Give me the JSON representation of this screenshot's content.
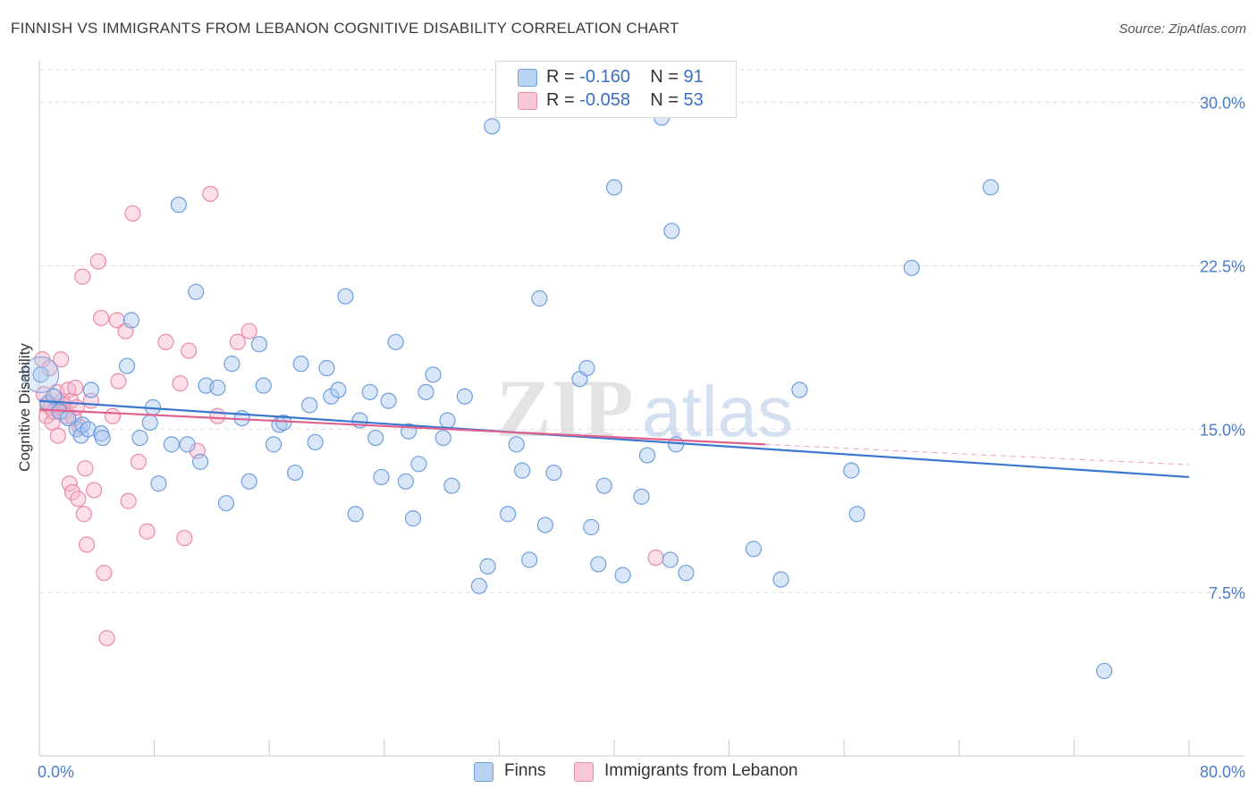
{
  "title": "FINNISH VS IMMIGRANTS FROM LEBANON COGNITIVE DISABILITY CORRELATION CHART",
  "source": "Source: ZipAtlas.com",
  "watermark": {
    "zip": "ZIP",
    "atlas": "atlas"
  },
  "legend": {
    "r_label": "R =",
    "n_label": "N =",
    "finns": {
      "r": "-0.160",
      "n": "91"
    },
    "lebanon": {
      "r": "-0.058",
      "n": "53"
    }
  },
  "bottom_legend": {
    "finns": "Finns",
    "lebanon": "Immigrants from Lebanon"
  },
  "colors": {
    "finns_fill": "#a9c8f0",
    "finns_stroke": "#6f9fdc",
    "finns_line": "#3a78d0",
    "lebanon_fill": "#f7b6cb",
    "lebanon_stroke": "#e98aaa",
    "lebanon_line": "#e0608f",
    "tick_text": "#4a7cc9",
    "grid": "#dcdcdc"
  },
  "chart_data": {
    "type": "scatter",
    "title": "FINNISH VS IMMIGRANTS FROM LEBANON COGNITIVE DISABILITY CORRELATION CHART",
    "xlabel": "",
    "ylabel": "Cognitive Disability",
    "xlim": [
      0,
      80
    ],
    "ylim": [
      0,
      31.5
    ],
    "x_tick_labels": [
      "0.0%",
      "80.0%"
    ],
    "y_ticks": [
      7.5,
      15.0,
      22.5,
      30.0
    ],
    "y_tick_labels": [
      "7.5%",
      "15.0%",
      "22.5%",
      "30.0%"
    ],
    "series": [
      {
        "name": "Finns",
        "r": -0.16,
        "n": 91,
        "trend": {
          "x": [
            0,
            80
          ],
          "y": [
            16.3,
            12.8
          ]
        },
        "points": [
          [
            0.1,
            17.5
          ],
          [
            0.6,
            16.2
          ],
          [
            1.0,
            16.5
          ],
          [
            1.4,
            15.8
          ],
          [
            2.0,
            15.5
          ],
          [
            2.6,
            15.0
          ],
          [
            2.9,
            14.7
          ],
          [
            3.0,
            15.2
          ],
          [
            3.4,
            15.0
          ],
          [
            3.6,
            16.8
          ],
          [
            4.3,
            14.8
          ],
          [
            4.4,
            14.6
          ],
          [
            6.1,
            17.9
          ],
          [
            6.4,
            20.0
          ],
          [
            7.0,
            14.6
          ],
          [
            7.7,
            15.3
          ],
          [
            7.9,
            16.0
          ],
          [
            8.3,
            12.5
          ],
          [
            9.2,
            14.3
          ],
          [
            9.7,
            25.3
          ],
          [
            10.3,
            14.3
          ],
          [
            10.9,
            21.3
          ],
          [
            11.2,
            13.5
          ],
          [
            11.6,
            17.0
          ],
          [
            12.4,
            16.9
          ],
          [
            13.0,
            11.6
          ],
          [
            13.4,
            18.0
          ],
          [
            14.1,
            15.5
          ],
          [
            14.6,
            12.6
          ],
          [
            15.3,
            18.9
          ],
          [
            15.6,
            17.0
          ],
          [
            16.3,
            14.3
          ],
          [
            16.7,
            15.2
          ],
          [
            17.0,
            15.3
          ],
          [
            17.8,
            13.0
          ],
          [
            18.2,
            18.0
          ],
          [
            18.8,
            16.1
          ],
          [
            19.2,
            14.4
          ],
          [
            20.0,
            17.8
          ],
          [
            20.3,
            16.5
          ],
          [
            20.8,
            16.8
          ],
          [
            21.3,
            21.1
          ],
          [
            22.0,
            11.1
          ],
          [
            22.3,
            15.4
          ],
          [
            23.0,
            16.7
          ],
          [
            23.4,
            14.6
          ],
          [
            23.8,
            12.8
          ],
          [
            24.3,
            16.3
          ],
          [
            24.8,
            19.0
          ],
          [
            25.5,
            12.6
          ],
          [
            25.7,
            14.9
          ],
          [
            26.0,
            10.9
          ],
          [
            26.4,
            13.4
          ],
          [
            26.9,
            16.7
          ],
          [
            27.4,
            17.5
          ],
          [
            28.1,
            14.6
          ],
          [
            28.4,
            15.4
          ],
          [
            28.7,
            12.4
          ],
          [
            29.6,
            16.5
          ],
          [
            30.6,
            7.8
          ],
          [
            31.2,
            8.7
          ],
          [
            31.5,
            28.9
          ],
          [
            32.6,
            11.1
          ],
          [
            33.2,
            14.3
          ],
          [
            33.6,
            13.1
          ],
          [
            34.1,
            9.0
          ],
          [
            35.2,
            10.6
          ],
          [
            35.8,
            13.0
          ],
          [
            37.6,
            17.3
          ],
          [
            38.1,
            17.8
          ],
          [
            38.4,
            10.5
          ],
          [
            38.9,
            8.8
          ],
          [
            39.3,
            12.4
          ],
          [
            40.0,
            26.1
          ],
          [
            40.6,
            8.3
          ],
          [
            41.9,
            11.9
          ],
          [
            42.3,
            13.8
          ],
          [
            43.3,
            29.3
          ],
          [
            43.9,
            9.0
          ],
          [
            44.0,
            24.1
          ],
          [
            44.3,
            14.3
          ],
          [
            45.0,
            8.4
          ],
          [
            49.7,
            9.5
          ],
          [
            51.6,
            8.1
          ],
          [
            52.9,
            16.8
          ],
          [
            56.5,
            13.1
          ],
          [
            56.9,
            11.1
          ],
          [
            60.7,
            22.4
          ],
          [
            66.2,
            26.1
          ],
          [
            74.1,
            3.9
          ],
          [
            34.8,
            21.0
          ]
        ]
      },
      {
        "name": "Immigrants from Lebanon",
        "r": -0.058,
        "n": 53,
        "trend": {
          "x": [
            0,
            50.5
          ],
          "y": [
            15.9,
            14.3
          ]
        },
        "points": [
          [
            0.2,
            18.2
          ],
          [
            0.3,
            16.6
          ],
          [
            0.5,
            15.6
          ],
          [
            0.6,
            16.1
          ],
          [
            0.7,
            17.8
          ],
          [
            0.8,
            16.0
          ],
          [
            0.9,
            15.3
          ],
          [
            1.0,
            15.8
          ],
          [
            1.2,
            16.7
          ],
          [
            1.3,
            14.7
          ],
          [
            1.4,
            16.0
          ],
          [
            1.5,
            18.2
          ],
          [
            1.6,
            16.3
          ],
          [
            1.7,
            16.1
          ],
          [
            1.8,
            15.8
          ],
          [
            1.9,
            15.6
          ],
          [
            2.0,
            16.8
          ],
          [
            2.1,
            12.5
          ],
          [
            2.2,
            16.3
          ],
          [
            2.3,
            12.1
          ],
          [
            2.4,
            15.5
          ],
          [
            2.5,
            16.9
          ],
          [
            2.6,
            16.0
          ],
          [
            2.7,
            11.8
          ],
          [
            2.8,
            15.1
          ],
          [
            3.0,
            22.0
          ],
          [
            3.1,
            11.1
          ],
          [
            3.2,
            13.2
          ],
          [
            3.3,
            9.7
          ],
          [
            3.6,
            16.3
          ],
          [
            3.8,
            12.2
          ],
          [
            4.1,
            22.7
          ],
          [
            4.3,
            20.1
          ],
          [
            4.5,
            8.4
          ],
          [
            4.7,
            5.4
          ],
          [
            5.1,
            15.6
          ],
          [
            5.4,
            20.0
          ],
          [
            5.5,
            17.2
          ],
          [
            6.0,
            19.5
          ],
          [
            6.2,
            11.7
          ],
          [
            6.5,
            24.9
          ],
          [
            6.9,
            13.5
          ],
          [
            7.5,
            10.3
          ],
          [
            8.8,
            19.0
          ],
          [
            9.8,
            17.1
          ],
          [
            10.1,
            10.0
          ],
          [
            10.4,
            18.6
          ],
          [
            11.0,
            14.0
          ],
          [
            11.9,
            25.8
          ],
          [
            12.4,
            15.6
          ],
          [
            13.8,
            19.0
          ],
          [
            14.6,
            19.5
          ],
          [
            42.9,
            9.1
          ]
        ]
      }
    ]
  }
}
